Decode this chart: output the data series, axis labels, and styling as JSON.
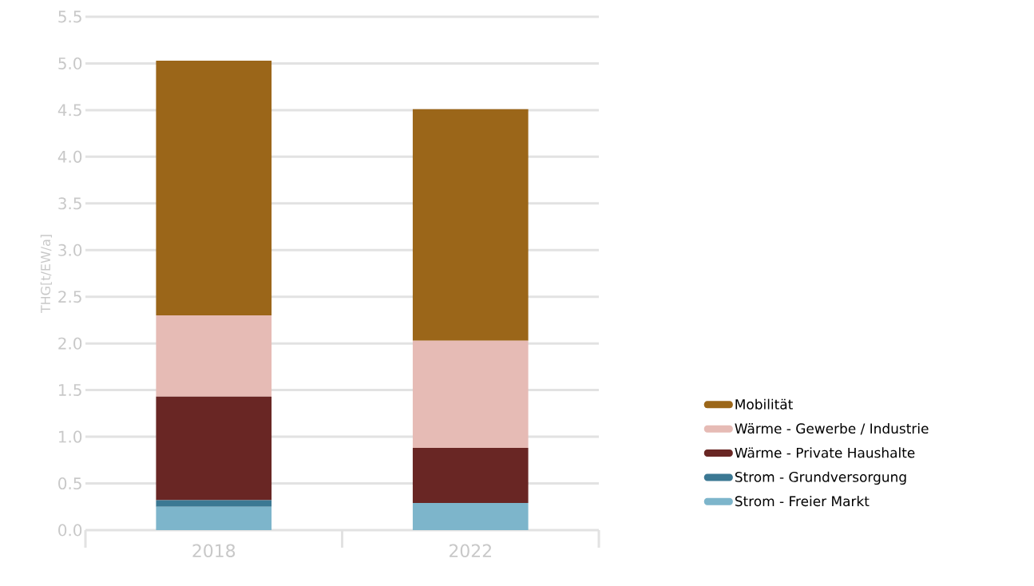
{
  "chart_data": {
    "type": "bar",
    "stacked": true,
    "ylabel": "THG[t/EW/a]",
    "categories": [
      "2018",
      "2022"
    ],
    "series": [
      {
        "name": "Strom - Freier Markt",
        "color": "#7db5cb",
        "values": [
          0.25,
          0.29
        ]
      },
      {
        "name": "Strom - Grundversorgung",
        "color": "#3b7893",
        "values": [
          0.07,
          0
        ]
      },
      {
        "name": "Wärme - Private Haushalte",
        "color": "#692624",
        "values": [
          1.11,
          0.59
        ]
      },
      {
        "name": "Wärme - Gewerbe / Industrie",
        "color": "#e6bbb5",
        "values": [
          0.87,
          1.15
        ]
      },
      {
        "name": "Mobilität",
        "color": "#9b6619",
        "values": [
          2.73,
          2.48
        ]
      }
    ],
    "ylim": [
      0,
      5.5
    ],
    "yticks": [
      {
        "value": 0,
        "label": "0.0"
      },
      {
        "value": 0.5,
        "label": "0.5"
      },
      {
        "value": 1,
        "label": "1.0"
      },
      {
        "value": 1.5,
        "label": "1.5"
      },
      {
        "value": 2,
        "label": "2.0"
      },
      {
        "value": 2.5,
        "label": "2.5"
      },
      {
        "value": 3,
        "label": "3.0"
      },
      {
        "value": 3.5,
        "label": "3.5"
      },
      {
        "value": 4,
        "label": "4.0"
      },
      {
        "value": 4.5,
        "label": "4.5"
      },
      {
        "value": 5,
        "label": "5.0"
      },
      {
        "value": 5.5,
        "label": "5.5"
      }
    ],
    "grid": "y",
    "legend": "right"
  }
}
